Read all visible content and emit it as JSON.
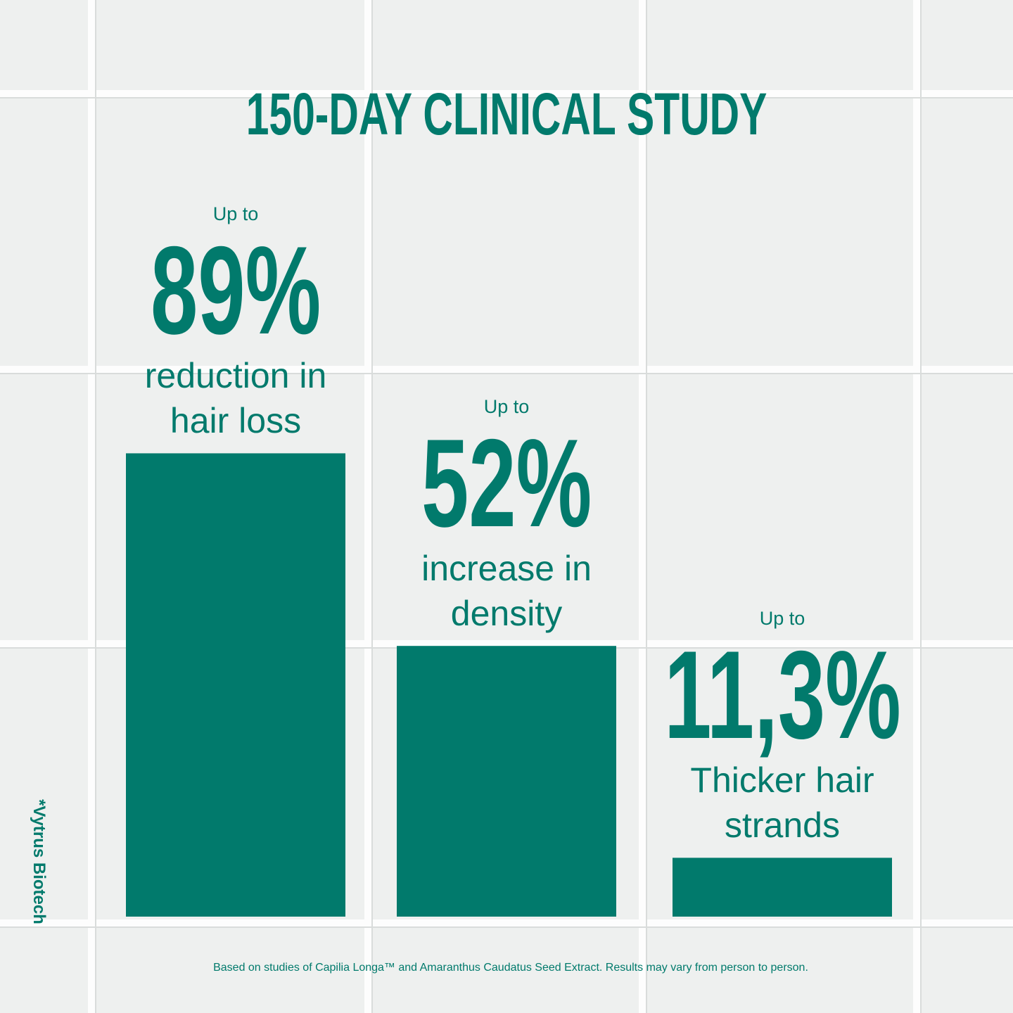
{
  "chart_data": {
    "type": "bar",
    "title": "150-DAY CLINICAL STUDY",
    "prefixes": [
      "Up to",
      "Up to",
      "Up to"
    ],
    "categories": [
      "reduction in hair loss",
      "increase in density",
      "Thicker hair strands"
    ],
    "values": [
      89,
      52,
      11.3
    ],
    "value_labels": [
      "89%",
      "52%",
      "11,3%"
    ],
    "color": "#017a6c",
    "source": "*Vytrus Biotech",
    "footnote": "Based on studies of Capilia Longa™ and Amaranthus Caudatus Seed Extract. Results may vary from person to person."
  }
}
